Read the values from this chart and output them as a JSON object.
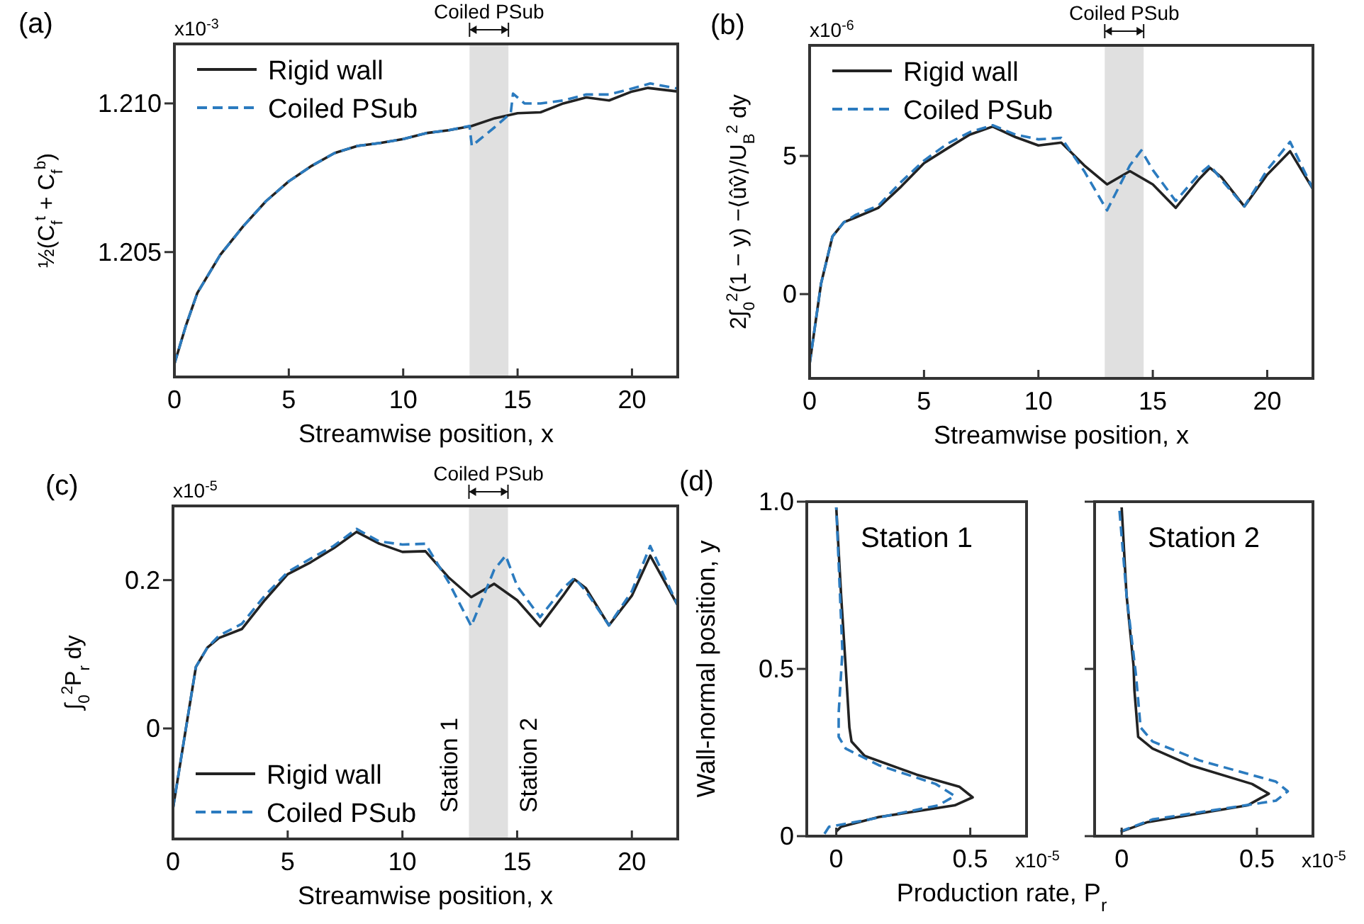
{
  "chart_data": [
    {
      "type": "line",
      "ylabel": "½(C$_{f}$$^{t}$ + C$_{f}$$^{b}$)",
      "xlabel": "Streamwise position, x",
      "xlim": [
        0,
        22
      ],
      "ylim": [
        1.2008,
        1.212
      ],
      "xticks": [
        0,
        5,
        10,
        15,
        20
      ],
      "yticks": [
        1.205,
        {
          "value": 1.21,
          "label": "1.210"
        }
      ],
      "legend": "top left",
      "grid": false,
      "bands": [
        {
          "axis": "x",
          "from": 12.9,
          "to": 14.6,
          "label": "Coiled PSub",
          "color": "#e0e0e0"
        }
      ],
      "annotations": [
        "(a)",
        "x10$^{-3}$"
      ],
      "series": [
        {
          "name": "Rigid wall",
          "color": "#222222",
          "line_style": "solid",
          "x": [
            0,
            0.5,
            1,
            2,
            3,
            4,
            5,
            6,
            7,
            8,
            9,
            10,
            11,
            12,
            13,
            14,
            15,
            16,
            17,
            18,
            19,
            20,
            20.7,
            22
          ],
          "values": [
            1.20124,
            1.20252,
            1.20362,
            1.2049,
            1.20586,
            1.20671,
            1.20738,
            1.2079,
            1.20833,
            1.20857,
            1.20867,
            1.2088,
            1.209,
            1.2091,
            1.20924,
            1.2095,
            1.20967,
            1.2097,
            1.21,
            1.2102,
            1.2101,
            1.2104,
            1.21052,
            1.2104
          ]
        },
        {
          "name": "Coiled PSub",
          "color": "#2b7bbf",
          "line_style": "dashed",
          "x": [
            0,
            0.5,
            1,
            2,
            3,
            4,
            5,
            6,
            7,
            8,
            9,
            10,
            11,
            12,
            12.9,
            13,
            14,
            14.7,
            14.8,
            15.3,
            16,
            17,
            18,
            19,
            20,
            20.8,
            22
          ],
          "values": [
            1.20124,
            1.20252,
            1.20362,
            1.2049,
            1.20586,
            1.20671,
            1.20738,
            1.2079,
            1.20833,
            1.20857,
            1.20867,
            1.2088,
            1.209,
            1.2091,
            1.20924,
            1.20857,
            1.2092,
            1.20967,
            1.21033,
            1.21,
            1.21,
            1.2101,
            1.2103,
            1.2103,
            1.2105,
            1.21067,
            1.2105
          ]
        }
      ]
    },
    {
      "type": "line",
      "ylabel": "2∫$_{0}$$^{2}$(1 − y) −⟨ûv̂⟩/U$_{B}$$^{2}$ dy",
      "xlabel": "Streamwise position, x",
      "xlim": [
        0,
        22
      ],
      "ylim": [
        -3.05,
        9.0
      ],
      "xticks": [
        0,
        5,
        10,
        15,
        20
      ],
      "yticks": [
        0,
        5
      ],
      "legend": "top left",
      "grid": false,
      "bands": [
        {
          "axis": "x",
          "from": 12.9,
          "to": 14.6,
          "label": "Coiled PSub",
          "color": "#e0e0e0"
        }
      ],
      "annotations": [
        "(b)",
        "x10$^{-6}$"
      ],
      "series": [
        {
          "name": "Rigid wall",
          "color": "#222222",
          "line_style": "solid",
          "x": [
            0,
            0.5,
            1,
            1.5,
            2,
            3,
            4,
            5,
            6,
            7,
            8,
            9,
            10,
            11,
            12,
            13,
            14,
            15,
            16,
            17,
            17.5,
            18,
            19,
            20,
            21,
            22
          ],
          "values": [
            -2.53,
            0.38,
            2.09,
            2.6,
            2.77,
            3.12,
            3.89,
            4.74,
            5.26,
            5.77,
            6.06,
            5.68,
            5.38,
            5.48,
            4.66,
            3.97,
            4.45,
            3.97,
            3.12,
            4.14,
            4.57,
            4.23,
            3.17,
            4.32,
            5.17,
            3.8
          ]
        },
        {
          "name": "Coiled PSub",
          "color": "#2b7bbf",
          "line_style": "dashed",
          "x": [
            0,
            0.5,
            1,
            1.5,
            2,
            3,
            4,
            5,
            6,
            7,
            8,
            9,
            10,
            11,
            12,
            13,
            14,
            14.5,
            15,
            16,
            17,
            17.5,
            18,
            19,
            20,
            21,
            22
          ],
          "values": [
            -2.53,
            0.38,
            2.09,
            2.6,
            2.86,
            3.2,
            4.06,
            4.83,
            5.43,
            5.86,
            6.11,
            5.77,
            5.6,
            5.65,
            4.45,
            3.03,
            4.66,
            5.2,
            4.49,
            3.37,
            4.32,
            4.66,
            4.14,
            3.17,
            4.49,
            5.51,
            3.8
          ]
        }
      ]
    },
    {
      "type": "line",
      "ylabel": "∫$_{0}$$^{2}$P$_{r}$ dy",
      "xlabel": "Streamwise position, x",
      "xlim": [
        0,
        22
      ],
      "ylim": [
        -0.149,
        0.3
      ],
      "xticks": [
        0,
        5,
        10,
        15,
        20
      ],
      "yticks": [
        0,
        0.2
      ],
      "legend": "bottom left",
      "grid": false,
      "bands": [
        {
          "axis": "x",
          "from": 12.9,
          "to": 14.6,
          "label": "Coiled PSub",
          "color": "#e0e0e0"
        }
      ],
      "annotations": [
        "(c)",
        "x10$^{-5}$",
        "Station 1",
        "Station 2"
      ],
      "series": [
        {
          "name": "Rigid wall",
          "color": "#222222",
          "line_style": "solid",
          "x": [
            0,
            0.5,
            1,
            1.5,
            2,
            3,
            4,
            5,
            6,
            7,
            8,
            9,
            10,
            11,
            12,
            13,
            14,
            15,
            16,
            17,
            17.5,
            18,
            19,
            20,
            20.8,
            22
          ],
          "values": [
            -0.108,
            -0.012,
            0.083,
            0.109,
            0.122,
            0.134,
            0.173,
            0.208,
            0.224,
            0.243,
            0.265,
            0.249,
            0.238,
            0.239,
            0.204,
            0.177,
            0.195,
            0.173,
            0.138,
            0.179,
            0.201,
            0.189,
            0.139,
            0.179,
            0.233,
            0.166
          ]
        },
        {
          "name": "Coiled PSub",
          "color": "#2b7bbf",
          "line_style": "dashed",
          "x": [
            0,
            0.5,
            1,
            1.5,
            2,
            3,
            4,
            5,
            6,
            7,
            8,
            9,
            10,
            11,
            12,
            13,
            14,
            14.5,
            15,
            16,
            17,
            17.5,
            18,
            19,
            20,
            20.8,
            22
          ],
          "values": [
            -0.108,
            -0.012,
            0.083,
            0.109,
            0.125,
            0.141,
            0.179,
            0.211,
            0.229,
            0.246,
            0.269,
            0.252,
            0.248,
            0.249,
            0.198,
            0.138,
            0.214,
            0.233,
            0.192,
            0.15,
            0.189,
            0.203,
            0.185,
            0.139,
            0.185,
            0.246,
            0.166
          ]
        }
      ]
    },
    {
      "type": "line",
      "title": "Station 1",
      "ylabel": "Wall-normal position, y",
      "xlabel": "Production rate, P$_{r}$",
      "xlim": [
        -0.11,
        0.71
      ],
      "ylim": [
        0,
        1
      ],
      "xticks": [
        0,
        0.5
      ],
      "yticks": [
        0,
        0.5,
        {
          "value": 1,
          "label": "1.0"
        }
      ],
      "grid": false,
      "annotations": [
        "(d)",
        "x10$^{-5}$"
      ],
      "series": [
        {
          "color": "#222222",
          "line_style": "solid",
          "x": [
            0,
            0.018,
            0.159,
            0.442,
            0.509,
            0.459,
            0.3,
            0.106,
            0.057,
            0.049,
            0.035,
            0.018,
            0
          ],
          "values": [
            0.014,
            0.028,
            0.057,
            0.092,
            0.116,
            0.148,
            0.184,
            0.24,
            0.283,
            0.325,
            0.509,
            0.721,
            0.983
          ]
        },
        {
          "color": "#2b7bbf",
          "line_style": "dashed",
          "x": [
            -0.044,
            -0.027,
            0.124,
            0.38,
            0.442,
            0.371,
            0.159,
            0.035,
            0.009,
            0.009,
            0.023,
            0.014,
            0
          ],
          "values": [
            0.007,
            0.028,
            0.05,
            0.092,
            0.12,
            0.156,
            0.212,
            0.262,
            0.297,
            0.368,
            0.552,
            0.721,
            0.983
          ]
        }
      ]
    },
    {
      "type": "line",
      "title": "Station 2",
      "xlim": [
        -0.1,
        0.707
      ],
      "ylim": [
        0,
        1
      ],
      "xticks": [
        0,
        0.5
      ],
      "yticks": [
        0,
        0.5,
        1
      ],
      "tick_labels": "x",
      "grid": false,
      "annotations": [
        "x10$^{-5}$"
      ],
      "series": [
        {
          "color": "#222222",
          "line_style": "solid",
          "x": [
            0,
            0.096,
            0.465,
            0.544,
            0.482,
            0.254,
            0.114,
            0.061,
            0.047,
            0.044,
            0.018,
            0
          ],
          "values": [
            0.014,
            0.042,
            0.092,
            0.127,
            0.156,
            0.212,
            0.262,
            0.297,
            0.438,
            0.509,
            0.721,
            0.983
          ]
        },
        {
          "color": "#2b7bbf",
          "line_style": "dashed",
          "x": [
            -0.005,
            0.114,
            0.57,
            0.614,
            0.57,
            0.289,
            0.114,
            0.07,
            0.053,
            0.018,
            -0.009
          ],
          "values": [
            0.014,
            0.05,
            0.106,
            0.134,
            0.163,
            0.226,
            0.283,
            0.325,
            0.481,
            0.721,
            0.983
          ]
        }
      ]
    }
  ]
}
